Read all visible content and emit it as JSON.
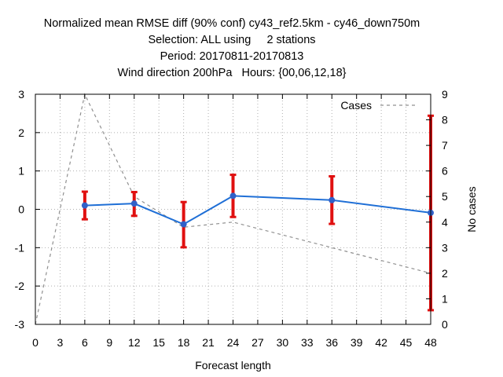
{
  "title_lines": [
    "Normalized mean RMSE diff (90% conf) cy43_ref2.5km - cy46_down750m",
    "Selection: ALL using     2 stations",
    "Period: 20170811-20170813",
    "Wind direction 200hPa   Hours: {00,06,12,18}"
  ],
  "colors": {
    "series": "#1f6fd6",
    "marker": "#3060c8",
    "errorbar": "#e01010",
    "cases": "#909090",
    "grid": "#b0b0b0"
  },
  "chart_data": {
    "type": "line",
    "xlabel": "Forecast length",
    "ylabel": "",
    "y2label": "No cases",
    "xlim": [
      0,
      48
    ],
    "ylim": [
      -3,
      3
    ],
    "y2lim": [
      0,
      9
    ],
    "xticks": [
      "0",
      "3",
      "6",
      "9",
      "12",
      "15",
      "18",
      "21",
      "24",
      "27",
      "30",
      "33",
      "36",
      "39",
      "42",
      "45",
      "48"
    ],
    "yticks": [
      "-3",
      "-2",
      "-1",
      "0",
      "1",
      "2",
      "3"
    ],
    "y2ticks": [
      "0",
      "1",
      "2",
      "3",
      "4",
      "5",
      "6",
      "7",
      "8",
      "9"
    ],
    "grid": true,
    "legend": {
      "position": "top-right",
      "entries": [
        "Cases"
      ]
    },
    "series": [
      {
        "x": [
          6,
          12,
          18,
          24,
          36,
          48
        ],
        "y": [
          0.1,
          0.15,
          -0.39,
          0.35,
          0.24,
          -0.09
        ],
        "err_low": [
          -0.26,
          -0.17,
          -0.99,
          -0.2,
          -0.38,
          -2.63
        ],
        "err_high": [
          0.46,
          0.45,
          0.19,
          0.9,
          0.86,
          2.44
        ]
      },
      {
        "name": "Cases",
        "axis": "y2",
        "x": [
          0,
          6,
          12,
          18,
          24,
          36,
          48
        ],
        "y": [
          0,
          9,
          5,
          3.8,
          4,
          3,
          2
        ]
      }
    ]
  }
}
